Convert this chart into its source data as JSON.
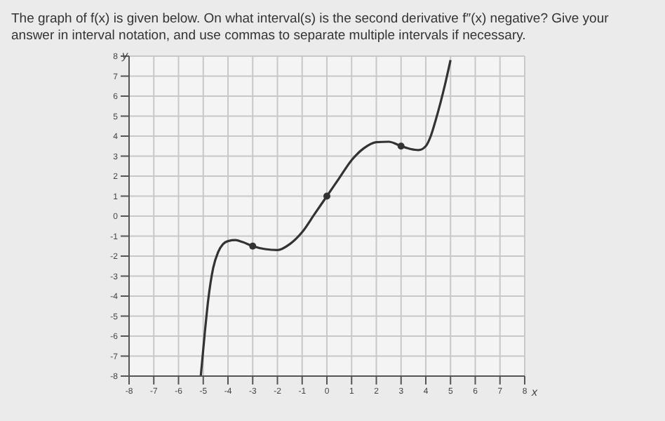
{
  "chart_data": {
    "type": "line",
    "title": "The graph of f(x) is given below. On what interval(s) is the second derivative f″(x) negative? Give your answer in interval notation, and use commas to separate multiple intervals if necessary.",
    "xlabel": "x",
    "ylabel": "y",
    "xlim": [
      -8,
      8
    ],
    "ylim": [
      -8,
      8
    ],
    "xticks": [
      -8,
      -7,
      -6,
      -5,
      -4,
      -3,
      -2,
      -1,
      0,
      1,
      2,
      3,
      4,
      5,
      6,
      7,
      8
    ],
    "yticks": [
      -8,
      -7,
      -6,
      -5,
      -4,
      -3,
      -2,
      -1,
      0,
      1,
      2,
      3,
      4,
      5,
      6,
      7,
      8
    ],
    "grid": true,
    "marker": "none",
    "line_style": "solid",
    "series": [
      {
        "color": "#333333",
        "x": [
          -5.1,
          -4.95,
          -4.8,
          -4.6,
          -4.4,
          -4.2,
          -4,
          -3.7,
          -3.4,
          -3,
          -2.5,
          -2,
          -1.5,
          -1,
          -0.5,
          0,
          0.5,
          1,
          1.5,
          2,
          2.5,
          3,
          3.4,
          3.7,
          4,
          4.2,
          4.4,
          4.6,
          4.8,
          5
        ],
        "values": [
          -8,
          -6,
          -4.2,
          -2.6,
          -1.8,
          -1.4,
          -1.25,
          -1.2,
          -1.3,
          -1.5,
          -1.65,
          -1.7,
          -1.4,
          -0.8,
          0.1,
          1,
          1.9,
          2.8,
          3.4,
          3.7,
          3.72,
          3.5,
          3.35,
          3.3,
          3.5,
          4,
          4.8,
          5.7,
          6.7,
          7.8
        ]
      },
      {
        "type": "scatter",
        "marker": "circle",
        "color": "#333333",
        "x": [
          -3,
          0,
          3
        ],
        "values": [
          -1.5,
          1,
          3.5
        ]
      }
    ]
  }
}
